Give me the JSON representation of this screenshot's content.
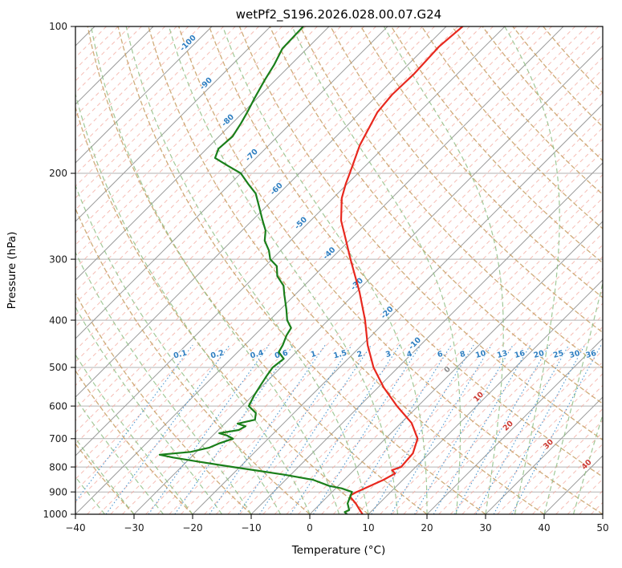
{
  "chart_data": {
    "type": "line",
    "subtype": "skew-t-log-p-sounding",
    "title": "wetPf2_S196.2026.028.00.07.G24",
    "xlabel": "Temperature (°C)",
    "ylabel": "Pressure (hPa)",
    "xlim": [
      -40,
      50
    ],
    "ylim": [
      1000,
      100
    ],
    "y_scale": "log",
    "skew_deg": 45,
    "grid": true,
    "x_ticks": [
      -40,
      -30,
      -20,
      -10,
      0,
      10,
      20,
      30,
      40,
      50
    ],
    "y_ticks": [
      100,
      200,
      300,
      400,
      500,
      600,
      700,
      800,
      900,
      1000
    ],
    "background": {
      "isotherm_step_major": 10,
      "isotherm_step_minor": 2,
      "isotherm_range": [
        -120,
        50
      ],
      "dry_adiabat_theta_range": [
        -30,
        170
      ],
      "dry_adiabat_step": 10,
      "moist_adiabat_t0_range": [
        -35,
        45
      ],
      "moist_adiabat_step": 5,
      "mixing_ratio_values": [
        0.1,
        0.2,
        0.4,
        0.6,
        1,
        1.5,
        2,
        3,
        4,
        6,
        8,
        10,
        13,
        16,
        20,
        25,
        30,
        36
      ],
      "mixing_ratio_label_pressure": 475,
      "mixing_ratio_top_hpa": 450,
      "colors": {
        "grid": "#b3b3b3",
        "isotherm_major": "#9c9c9c",
        "isotherm_minor": "#f3a79c",
        "dry_adiabat": "#c79e63",
        "moist_adiabat": "#8fbe85",
        "mixing_ratio": "#4f97d0",
        "label_blue": "#2f7fc1",
        "label_zero": "#8a8a8a",
        "label_warm": "#cc3b33",
        "temperature": "#e8281e",
        "dewpoint": "#1a7f1a",
        "axis": "#000000"
      }
    },
    "isotherm_labels": [
      {
        "t": -100,
        "p": 109
      },
      {
        "t": -90,
        "p": 132
      },
      {
        "t": -80,
        "p": 157
      },
      {
        "t": -70,
        "p": 185
      },
      {
        "t": -60,
        "p": 217
      },
      {
        "t": -50,
        "p": 255
      },
      {
        "t": -40,
        "p": 294
      },
      {
        "t": -30,
        "p": 340
      },
      {
        "t": -20,
        "p": 389
      },
      {
        "t": -10,
        "p": 450
      },
      {
        "t": 0,
        "p": 509
      },
      {
        "t": 10,
        "p": 579
      },
      {
        "t": 20,
        "p": 664
      },
      {
        "t": 30,
        "p": 724
      },
      {
        "t": 40,
        "p": 797
      }
    ],
    "series": [
      {
        "name": "temperature",
        "color": "#e8281e",
        "points_p_t": [
          [
            1000,
            9
          ],
          [
            975,
            7.5
          ],
          [
            950,
            6
          ],
          [
            925,
            4.2
          ],
          [
            915,
            3.7
          ],
          [
            900,
            4.2
          ],
          [
            880,
            5.2
          ],
          [
            850,
            6.7
          ],
          [
            825,
            7.6
          ],
          [
            812,
            6.5
          ],
          [
            800,
            7.5
          ],
          [
            750,
            7.2
          ],
          [
            700,
            5.5
          ],
          [
            650,
            1.8
          ],
          [
            600,
            -3.6
          ],
          [
            550,
            -9
          ],
          [
            500,
            -14.2
          ],
          [
            450,
            -19
          ],
          [
            400,
            -23.7
          ],
          [
            350,
            -29.5
          ],
          [
            300,
            -36.6
          ],
          [
            275,
            -40.5
          ],
          [
            250,
            -44.8
          ],
          [
            225,
            -48.5
          ],
          [
            210,
            -50.3
          ],
          [
            200,
            -51.4
          ],
          [
            175,
            -54.5
          ],
          [
            150,
            -57.1
          ],
          [
            138,
            -57.6
          ],
          [
            125,
            -57.4
          ],
          [
            110,
            -57.8
          ],
          [
            100,
            -57.2
          ]
        ]
      },
      {
        "name": "dewpoint",
        "color": "#1a7f1a",
        "points_p_t": [
          [
            1000,
            6.3
          ],
          [
            990,
            5.6
          ],
          [
            980,
            6
          ],
          [
            950,
            4.6
          ],
          [
            925,
            4
          ],
          [
            900,
            3.4
          ],
          [
            885,
            1
          ],
          [
            875,
            -1.5
          ],
          [
            850,
            -5.3
          ],
          [
            830,
            -11
          ],
          [
            815,
            -16
          ],
          [
            800,
            -21.2
          ],
          [
            780,
            -28
          ],
          [
            765,
            -33
          ],
          [
            755,
            -35.8
          ],
          [
            745,
            -31
          ],
          [
            730,
            -28.5
          ],
          [
            715,
            -27.5
          ],
          [
            700,
            -26
          ],
          [
            690,
            -27.5
          ],
          [
            682,
            -29.3
          ],
          [
            672,
            -26.5
          ],
          [
            660,
            -26
          ],
          [
            652,
            -27.8
          ],
          [
            640,
            -25.5
          ],
          [
            620,
            -26.5
          ],
          [
            600,
            -28.9
          ],
          [
            570,
            -29.8
          ],
          [
            545,
            -30.4
          ],
          [
            520,
            -31
          ],
          [
            500,
            -31.4
          ],
          [
            480,
            -31
          ],
          [
            465,
            -33
          ],
          [
            450,
            -33.5
          ],
          [
            430,
            -34.5
          ],
          [
            415,
            -35
          ],
          [
            400,
            -37
          ],
          [
            380,
            -39
          ],
          [
            355,
            -41.8
          ],
          [
            340,
            -43.5
          ],
          [
            325,
            -46.2
          ],
          [
            310,
            -48
          ],
          [
            300,
            -50.3
          ],
          [
            288,
            -52
          ],
          [
            275,
            -54.4
          ],
          [
            262,
            -56
          ],
          [
            250,
            -58.2
          ],
          [
            235,
            -61
          ],
          [
            220,
            -64
          ],
          [
            210,
            -67
          ],
          [
            200,
            -70
          ],
          [
            193,
            -73.5
          ],
          [
            186,
            -77
          ],
          [
            178,
            -78
          ],
          [
            168,
            -77.7
          ],
          [
            158,
            -78.5
          ],
          [
            150,
            -79.3
          ],
          [
            140,
            -80.5
          ],
          [
            129,
            -81.8
          ],
          [
            120,
            -82.8
          ],
          [
            111,
            -84.2
          ],
          [
            105,
            -84.3
          ],
          [
            100,
            -84.4
          ]
        ]
      }
    ]
  }
}
